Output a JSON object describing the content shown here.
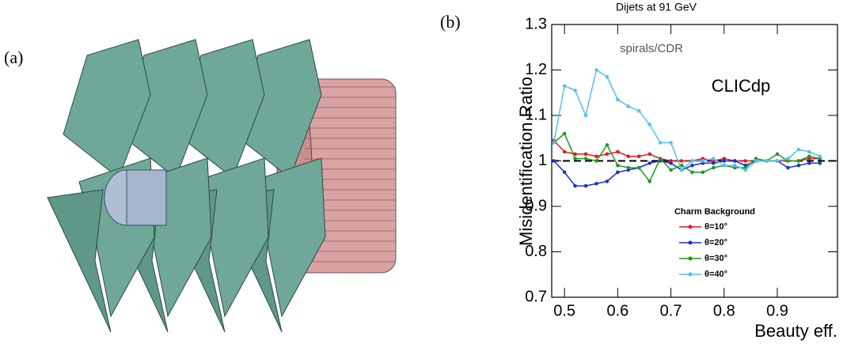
{
  "panel_labels": [
    "(a)",
    "(b)"
  ],
  "chart_data": {
    "type": "line",
    "title": "Dijets at 91 GeV",
    "x_label": "Beauty eff.",
    "y_label": "Misidentification Ratio",
    "annotations": [
      "spirals/CDR",
      "CLICdp"
    ],
    "legend_title": "Charm Background",
    "x": [
      0.48,
      0.5,
      0.52,
      0.54,
      0.56,
      0.58,
      0.6,
      0.62,
      0.64,
      0.66,
      0.68,
      0.7,
      0.72,
      0.74,
      0.76,
      0.78,
      0.8,
      0.82,
      0.84,
      0.86,
      0.88,
      0.9,
      0.92,
      0.94,
      0.96,
      0.98
    ],
    "series": [
      {
        "name": "θ=10°",
        "color": "#e8191c",
        "values": [
          1.045,
          1.02,
          1.015,
          1.015,
          1.01,
          1.015,
          1.02,
          1.01,
          1.01,
          1.015,
          1.005,
          1.0,
          1.0,
          1.0,
          1.005,
          1.0,
          1.005,
          1.0,
          1.0,
          1.0,
          1.0,
          1.0,
          1.0,
          1.0,
          1.005,
          1.005
        ]
      },
      {
        "name": "θ=20°",
        "color": "#1a2ee0",
        "values": [
          1.0,
          0.975,
          0.945,
          0.945,
          0.95,
          0.955,
          0.975,
          0.98,
          0.985,
          0.995,
          1.0,
          0.995,
          0.98,
          0.99,
          0.995,
          0.995,
          1.0,
          1.0,
          0.99,
          1.0,
          1.0,
          1.0,
          0.985,
          0.99,
          0.995,
          0.995
        ]
      },
      {
        "name": "θ=30°",
        "color": "#1e9a22",
        "values": [
          1.04,
          1.06,
          1.005,
          1.005,
          1.0,
          1.035,
          0.99,
          0.985,
          0.985,
          0.955,
          1.005,
          0.98,
          0.99,
          0.975,
          0.975,
          0.985,
          0.99,
          0.985,
          0.985,
          1.005,
          1.0,
          1.015,
          1.0,
          1.0,
          1.01,
          1.005
        ]
      },
      {
        "name": "θ=40°",
        "color": "#4fc3ee",
        "values": [
          1.04,
          1.165,
          1.155,
          1.1,
          1.2,
          1.185,
          1.135,
          1.12,
          1.11,
          1.08,
          1.04,
          1.04,
          0.98,
          1.0,
          1.0,
          1.005,
          0.99,
          0.99,
          0.98,
          1.0,
          1.0,
          1.0,
          1.005,
          1.025,
          1.02,
          1.01
        ]
      }
    ],
    "reference_line": 1,
    "xlim": [
      0.476,
      1.013
    ],
    "ylim": [
      0.7,
      1.3
    ],
    "xticks": [
      0.5,
      0.6,
      0.7,
      0.8,
      0.9
    ],
    "yticks": [
      0.7,
      0.8,
      0.9,
      1,
      1.1,
      1.2,
      1.3
    ]
  }
}
